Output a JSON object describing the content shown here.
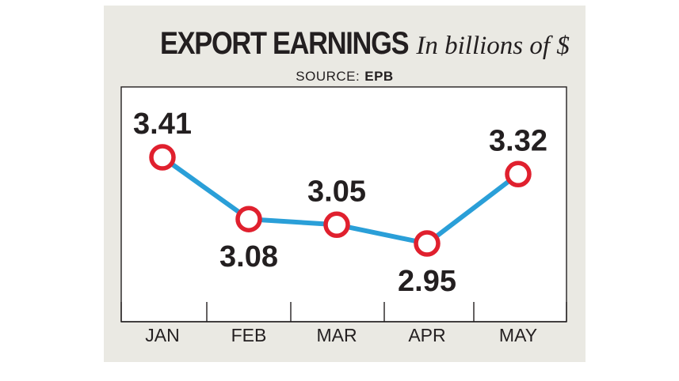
{
  "title": "EXPORT EARNINGS",
  "subtitle": "In billions of $",
  "source_label": "SOURCE:",
  "source_value": "EPB",
  "colors": {
    "background": "#eae9e3",
    "plot": "#ffffff",
    "line": "#2a9fd8",
    "marker": "#e0202e",
    "text": "#231f20"
  },
  "chart_data": {
    "type": "line",
    "title": "EXPORT EARNINGS",
    "subtitle": "In billions of $",
    "categories": [
      "JAN",
      "FEB",
      "MAR",
      "APR",
      "MAY"
    ],
    "values": [
      3.41,
      3.08,
      3.05,
      2.95,
      3.32
    ],
    "data_labels": [
      "3.41",
      "3.08",
      "3.05",
      "2.95",
      "3.32"
    ],
    "data_label_positions": [
      "above",
      "below",
      "above",
      "below",
      "above"
    ],
    "grid": false,
    "legend": "none"
  }
}
